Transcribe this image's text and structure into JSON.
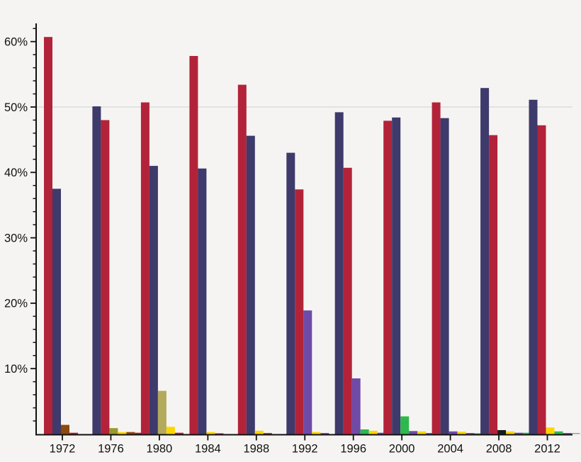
{
  "chart_data": {
    "type": "bar",
    "title": "",
    "subtitle": "",
    "unit": "%",
    "legend": "none",
    "grid": "single horizontal gridline at 50%",
    "x_axis": {
      "tick_labels": [
        "1972",
        "1976",
        "1980",
        "1984",
        "1988",
        "1992",
        "1996",
        "2000",
        "2004",
        "2008",
        "2012"
      ]
    },
    "y_axis": {
      "tick_labels": [
        "10%",
        "20%",
        "30%",
        "40%",
        "50%",
        "60%"
      ],
      "major_tick_values": [
        10,
        20,
        30,
        40,
        50,
        60
      ],
      "minor_tick_step": 2,
      "range": [
        0,
        62
      ],
      "gridline_values": [
        50
      ]
    },
    "groups": [
      {
        "category": "1972",
        "bars": [
          {
            "color": "#b22339",
            "value": 60.7
          },
          {
            "color": "#3e3a6b",
            "value": 37.5
          },
          {
            "color": "#8b4a0e",
            "value": 1.4
          },
          {
            "color": "#b22339",
            "value": 0.2
          }
        ]
      },
      {
        "category": "1976",
        "bars": [
          {
            "color": "#3e3a6b",
            "value": 50.1
          },
          {
            "color": "#b22339",
            "value": 48.0
          },
          {
            "color": "#99992e",
            "value": 0.9
          },
          {
            "color": "#ffd500",
            "value": 0.3
          },
          {
            "color": "#8b4a0e",
            "value": 0.3
          },
          {
            "color": "#b22339",
            "value": 0.2
          }
        ]
      },
      {
        "category": "1980",
        "bars": [
          {
            "color": "#b22339",
            "value": 50.7
          },
          {
            "color": "#3e3a6b",
            "value": 41.0
          },
          {
            "color": "#b3aa5c",
            "value": 6.6
          },
          {
            "color": "#ffd500",
            "value": 1.1
          },
          {
            "color": "#b22339",
            "value": 0.2
          }
        ]
      },
      {
        "category": "1984",
        "bars": [
          {
            "color": "#b22339",
            "value": 57.8
          },
          {
            "color": "#3e3a6b",
            "value": 40.6
          },
          {
            "color": "#ffd500",
            "value": 0.3
          },
          {
            "color": "#b22339",
            "value": 0.1
          }
        ]
      },
      {
        "category": "1988",
        "bars": [
          {
            "color": "#b22339",
            "value": 53.4
          },
          {
            "color": "#3e3a6b",
            "value": 45.6
          },
          {
            "color": "#ffd500",
            "value": 0.5
          },
          {
            "color": "#8b4a0e",
            "value": 0.15
          }
        ]
      },
      {
        "category": "1992",
        "bars": [
          {
            "color": "#3e3a6b",
            "value": 43.0
          },
          {
            "color": "#b22339",
            "value": 37.4
          },
          {
            "color": "#6f4ba8",
            "value": 18.9
          },
          {
            "color": "#ffd500",
            "value": 0.3
          },
          {
            "color": "#6f4ba8",
            "value": 0.15
          }
        ]
      },
      {
        "category": "1996",
        "bars": [
          {
            "color": "#3e3a6b",
            "value": 49.2
          },
          {
            "color": "#b22339",
            "value": 40.7
          },
          {
            "color": "#6f4ba8",
            "value": 8.5
          },
          {
            "color": "#2db84d",
            "value": 0.7
          },
          {
            "color": "#ffd500",
            "value": 0.5
          },
          {
            "color": "#6f4ba8",
            "value": 0.2
          }
        ]
      },
      {
        "category": "2000",
        "bars": [
          {
            "color": "#b22339",
            "value": 47.9
          },
          {
            "color": "#3e3a6b",
            "value": 48.4
          },
          {
            "color": "#2db84d",
            "value": 2.7
          },
          {
            "color": "#6f4ba8",
            "value": 0.45
          },
          {
            "color": "#ffd500",
            "value": 0.4
          },
          {
            "color": "#6f4ba8",
            "value": 0.15
          }
        ]
      },
      {
        "category": "2004",
        "bars": [
          {
            "color": "#b22339",
            "value": 50.7
          },
          {
            "color": "#3e3a6b",
            "value": 48.3
          },
          {
            "color": "#6f4ba8",
            "value": 0.4
          },
          {
            "color": "#ffd500",
            "value": 0.35
          },
          {
            "color": "#6f4ba8",
            "value": 0.15
          },
          {
            "color": "#2db84d",
            "value": 0.1
          }
        ]
      },
      {
        "category": "2008",
        "bars": [
          {
            "color": "#3e3a6b",
            "value": 52.9
          },
          {
            "color": "#b22339",
            "value": 45.7
          },
          {
            "color": "#1a1a1a",
            "value": 0.6
          },
          {
            "color": "#ffd500",
            "value": 0.4
          },
          {
            "color": "#6f4ba8",
            "value": 0.2
          },
          {
            "color": "#2db84d",
            "value": 0.2
          }
        ]
      },
      {
        "category": "2012",
        "bars": [
          {
            "color": "#3e3a6b",
            "value": 51.1
          },
          {
            "color": "#b22339",
            "value": 47.2
          },
          {
            "color": "#ffd500",
            "value": 1.0
          },
          {
            "color": "#2db84d",
            "value": 0.4
          },
          {
            "color": "#6f4ba8",
            "value": 0.15
          },
          {
            "color": "#999999",
            "value": 0.15
          }
        ]
      }
    ]
  },
  "colors": {
    "background": "#f5f4f2",
    "axis": "#111111",
    "gridline": "#dcdcdc",
    "label": "#111111",
    "bar_red": "#b22339",
    "bar_navy": "#3e3a6b",
    "bar_gold": "#ffd500",
    "bar_purple": "#6f4ba8",
    "bar_green": "#2db84d",
    "bar_khaki": "#b3aa5c",
    "bar_olive": "#99992e",
    "bar_brown": "#8b4a0e",
    "bar_black": "#1a1a1a",
    "bar_gray": "#999999"
  }
}
